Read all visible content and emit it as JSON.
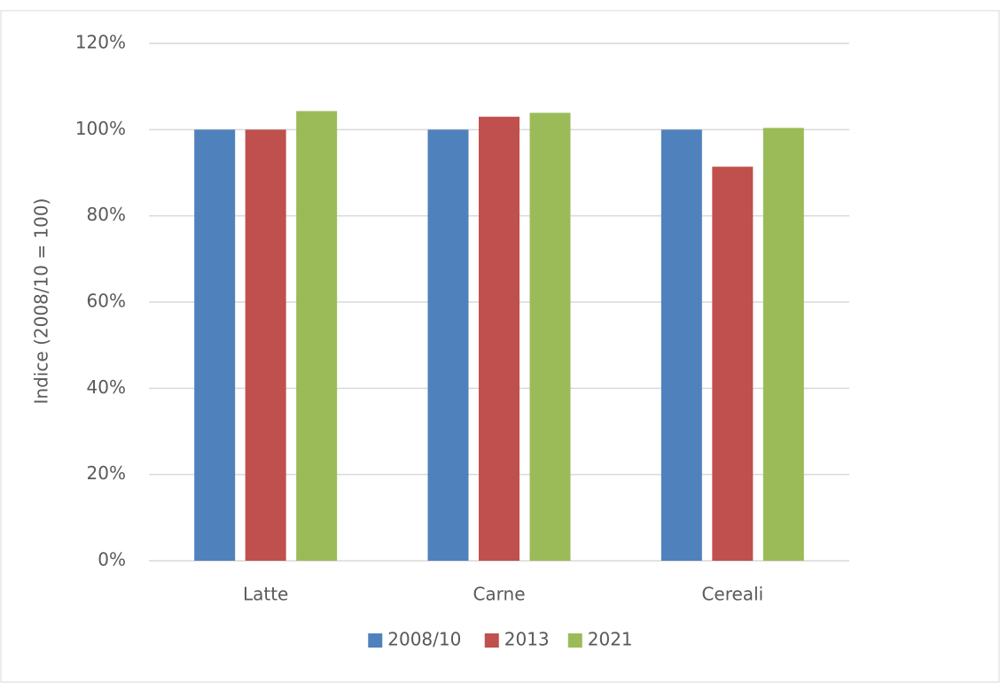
{
  "chart_data": {
    "type": "bar",
    "y_axis_label": "Indice (2008/10 = 100)",
    "categories": [
      "Latte",
      "Carne",
      "Cereali"
    ],
    "series": [
      {
        "name": "2008/10",
        "color": "#4f81bd",
        "values": [
          100,
          100,
          100
        ]
      },
      {
        "name": "2013",
        "color": "#c0504d",
        "values": [
          100,
          103,
          91.4
        ]
      },
      {
        "name": "2021",
        "color": "#9bbb59",
        "values": [
          104.3,
          103.9,
          100.4
        ]
      }
    ],
    "ylim": [
      0,
      120
    ],
    "yticks": [
      {
        "value": 0,
        "label": "0%"
      },
      {
        "value": 20,
        "label": "20%"
      },
      {
        "value": 40,
        "label": "40%"
      },
      {
        "value": 60,
        "label": "60%"
      },
      {
        "value": 80,
        "label": "80%"
      },
      {
        "value": 100,
        "label": "100%"
      },
      {
        "value": 120,
        "label": "120%"
      }
    ],
    "grid": true,
    "legend": "bottom"
  }
}
